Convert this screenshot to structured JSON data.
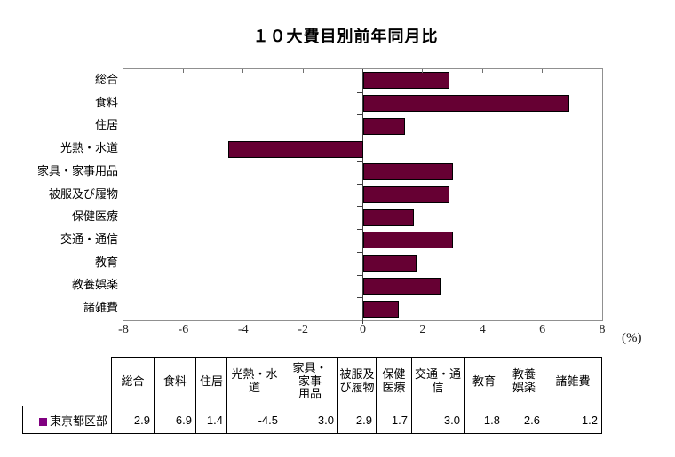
{
  "title": "１０大費目別前年同月比",
  "chart_data": {
    "type": "bar",
    "orientation": "horizontal",
    "title": "１０大費目別前年同月比",
    "categories": [
      "総合",
      "食料",
      "住居",
      "光熱・水道",
      "家具・家事用品",
      "被服及び履物",
      "保健医療",
      "交通・通信",
      "教育",
      "教養娯楽",
      "諸雑費"
    ],
    "series": [
      {
        "name": "東京都区部",
        "values": [
          2.9,
          6.9,
          1.4,
          -4.5,
          3.0,
          2.9,
          1.7,
          3.0,
          1.8,
          2.6,
          1.2
        ]
      }
    ],
    "xlim": [
      -8,
      8
    ],
    "xticks": [
      "-8",
      "-6",
      "-4",
      "-2",
      "0",
      "2",
      "4",
      "6",
      "8"
    ],
    "xlabel": "(%)",
    "grid": false,
    "legend_position": "bottom-table"
  },
  "colors": {
    "bar_fill": "#660033",
    "bar_border": "#000000",
    "legend_swatch": "#800080",
    "plot_border": "#909090",
    "axis_line": "#404040"
  },
  "axis": {
    "unit_label": "(%)"
  },
  "table": {
    "row_label": "東京都区部",
    "headers_display": [
      "総合",
      "食料",
      "住居",
      "光熱・水\n道",
      "家具・\n家事\n用品",
      "被服及\nび履物",
      "保健\n医療",
      "交通・通\n信",
      "教育",
      "教養\n娯楽",
      "諸雑費"
    ],
    "values_display": [
      "2.9",
      "6.9",
      "1.4",
      "-4.5",
      "3.0",
      "2.9",
      "1.7",
      "3.0",
      "1.8",
      "2.6",
      "1.2"
    ]
  }
}
